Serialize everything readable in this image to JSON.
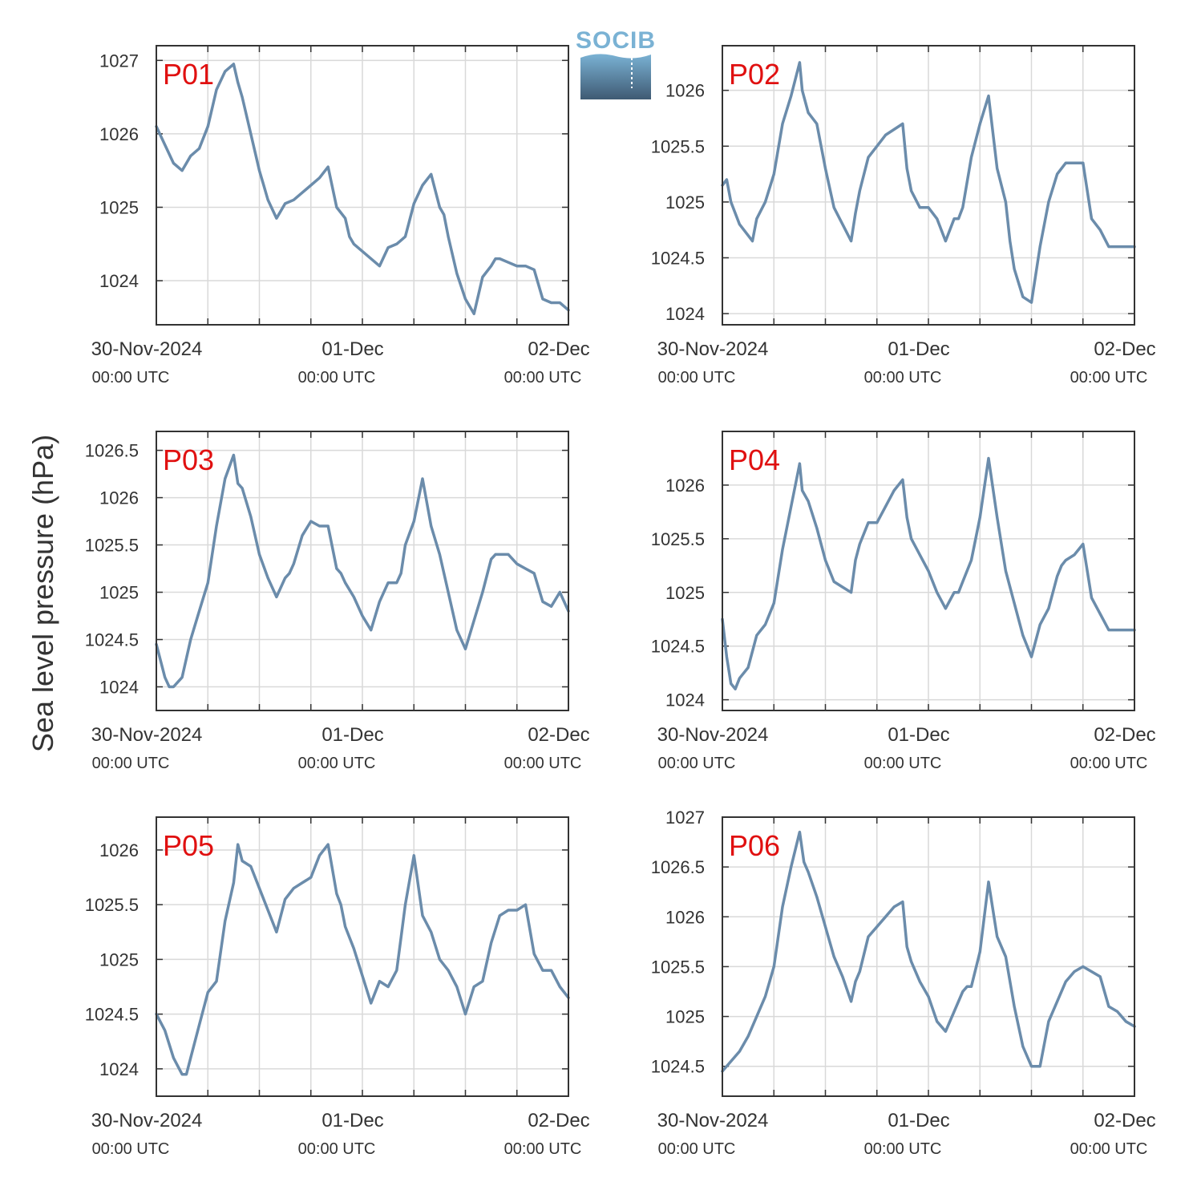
{
  "figure": {
    "ylabel": "Sea level pressure (hPa)",
    "logo_text": "SOCIB",
    "colors": {
      "line": "#6b8cab",
      "label": "#e01010",
      "grid": "#d9d9d9",
      "axis": "#333333",
      "logo_top": "#7ab2d4",
      "logo_bottom": "#3f5a73"
    }
  },
  "chart_data": [
    {
      "type": "line",
      "label": "P01",
      "ylim": [
        1023.4,
        1027.2
      ],
      "yticks": [
        1024,
        1025,
        1026,
        1027
      ],
      "xlim": [
        0,
        48
      ],
      "xticks": [
        {
          "x": 0,
          "label": "30-Nov-2024",
          "sub": "00:00 UTC"
        },
        {
          "x": 24,
          "label": "01-Dec",
          "sub": "00:00 UTC"
        },
        {
          "x": 48,
          "label": "02-Dec",
          "sub": "00:00 UTC"
        }
      ],
      "series": [
        {
          "x": [
            0,
            1,
            2,
            3,
            3.5,
            4,
            5,
            6,
            7,
            8,
            9,
            9.5,
            10,
            11,
            12,
            12.5,
            13,
            14,
            15,
            16,
            17,
            18,
            18.5,
            19,
            20,
            21,
            22,
            22.5,
            23,
            24,
            25,
            26,
            27,
            28,
            28.5,
            29,
            30,
            31,
            32,
            33,
            33.5,
            34,
            35,
            36,
            37,
            38,
            39,
            39.5,
            40,
            41,
            42,
            43,
            44,
            45,
            46,
            47,
            48
          ],
          "y": [
            1026.1,
            1025.85,
            1025.6,
            1025.5,
            1025.6,
            1025.7,
            1025.8,
            1026.1,
            1026.6,
            1026.85,
            1026.95,
            1026.7,
            1026.5,
            1026.0,
            1025.5,
            1025.3,
            1025.1,
            1024.85,
            1025.05,
            1025.1,
            1025.2,
            1025.3,
            1025.35,
            1025.4,
            1025.55,
            1025.0,
            1024.85,
            1024.6,
            1024.5,
            1024.4,
            1024.3,
            1024.2,
            1024.45,
            1024.5,
            1024.55,
            1024.6,
            1025.05,
            1025.3,
            1025.45,
            1025.0,
            1024.9,
            1024.6,
            1024.1,
            1023.75,
            1023.55,
            1024.05,
            1024.2,
            1024.3,
            1024.3,
            1024.25,
            1024.2,
            1024.2,
            1024.15,
            1023.75,
            1023.7,
            1023.7,
            1023.6
          ]
        }
      ]
    },
    {
      "type": "line",
      "label": "P02",
      "ylim": [
        1023.9,
        1026.4
      ],
      "yticks": [
        1024,
        1024.5,
        1025,
        1025.5,
        1026
      ],
      "xlim": [
        0,
        48
      ],
      "xticks": [
        {
          "x": 0,
          "label": "30-Nov-2024",
          "sub": "00:00 UTC"
        },
        {
          "x": 24,
          "label": "01-Dec",
          "sub": "00:00 UTC"
        },
        {
          "x": 48,
          "label": "02-Dec",
          "sub": "00:00 UTC"
        }
      ],
      "series": [
        {
          "x": [
            0,
            0.5,
            1,
            2,
            3,
            3.5,
            4,
            5,
            6,
            7,
            8,
            9,
            9.3,
            10,
            11,
            12,
            13,
            14,
            15,
            15.5,
            16,
            17,
            18,
            19,
            20,
            21,
            21.5,
            22,
            23,
            24,
            25,
            26,
            27,
            27.5,
            28,
            29,
            30,
            31,
            32,
            33,
            33.5,
            34,
            35,
            36,
            37,
            38,
            39,
            39.5,
            40,
            41,
            42,
            43,
            44,
            45,
            45.5,
            46,
            47,
            48
          ],
          "y": [
            1025.15,
            1025.2,
            1025.0,
            1024.8,
            1024.7,
            1024.65,
            1024.85,
            1025.0,
            1025.25,
            1025.7,
            1025.95,
            1026.25,
            1026.0,
            1025.8,
            1025.7,
            1025.3,
            1024.95,
            1024.8,
            1024.65,
            1024.9,
            1025.1,
            1025.4,
            1025.5,
            1025.6,
            1025.65,
            1025.7,
            1025.3,
            1025.1,
            1024.95,
            1024.95,
            1024.85,
            1024.65,
            1024.85,
            1024.85,
            1024.95,
            1025.4,
            1025.7,
            1025.95,
            1025.3,
            1025.0,
            1024.65,
            1024.4,
            1024.15,
            1024.1,
            1024.6,
            1025.0,
            1025.25,
            1025.3,
            1025.35,
            1025.35,
            1025.35,
            1024.85,
            1024.75,
            1024.6,
            1024.6,
            1024.6,
            1024.6,
            1024.6
          ]
        }
      ]
    },
    {
      "type": "line",
      "label": "P03",
      "ylim": [
        1023.75,
        1026.7
      ],
      "yticks": [
        1024,
        1024.5,
        1025,
        1025.5,
        1026,
        1026.5
      ],
      "xlim": [
        0,
        48
      ],
      "xticks": [
        {
          "x": 0,
          "label": "30-Nov-2024",
          "sub": "00:00 UTC"
        },
        {
          "x": 24,
          "label": "01-Dec",
          "sub": "00:00 UTC"
        },
        {
          "x": 48,
          "label": "02-Dec",
          "sub": "00:00 UTC"
        }
      ],
      "series": [
        {
          "x": [
            0,
            1,
            1.5,
            2,
            3,
            4,
            5,
            6,
            7,
            8,
            9,
            9.5,
            10,
            11,
            12,
            13,
            14,
            15,
            15.5,
            16,
            17,
            18,
            19,
            20,
            21,
            21.5,
            22,
            23,
            24,
            25,
            26,
            27,
            28,
            28.5,
            29,
            30,
            31,
            32,
            33,
            34,
            35,
            36,
            37,
            38,
            39,
            39.5,
            40,
            41,
            42,
            43,
            44,
            45,
            46,
            47,
            48
          ],
          "y": [
            1024.45,
            1024.1,
            1024.0,
            1024.0,
            1024.1,
            1024.5,
            1024.8,
            1025.1,
            1025.7,
            1026.2,
            1026.45,
            1026.15,
            1026.1,
            1025.8,
            1025.4,
            1025.15,
            1024.95,
            1025.15,
            1025.2,
            1025.3,
            1025.6,
            1025.75,
            1025.7,
            1025.7,
            1025.25,
            1025.2,
            1025.1,
            1024.95,
            1024.75,
            1024.6,
            1024.9,
            1025.1,
            1025.1,
            1025.2,
            1025.5,
            1025.75,
            1026.2,
            1025.7,
            1025.4,
            1025.0,
            1024.6,
            1024.4,
            1024.7,
            1025.0,
            1025.35,
            1025.4,
            1025.4,
            1025.4,
            1025.3,
            1025.25,
            1025.2,
            1024.9,
            1024.85,
            1025.0,
            1024.8
          ]
        }
      ]
    },
    {
      "type": "line",
      "label": "P04",
      "ylim": [
        1023.9,
        1026.5
      ],
      "yticks": [
        1024,
        1024.5,
        1025,
        1025.5,
        1026
      ],
      "xlim": [
        0,
        48
      ],
      "xticks": [
        {
          "x": 0,
          "label": "30-Nov-2024",
          "sub": "00:00 UTC"
        },
        {
          "x": 24,
          "label": "01-Dec",
          "sub": "00:00 UTC"
        },
        {
          "x": 48,
          "label": "02-Dec",
          "sub": "00:00 UTC"
        }
      ],
      "series": [
        {
          "x": [
            0,
            0.5,
            1,
            1.5,
            2,
            3,
            4,
            5,
            6,
            7,
            8,
            9,
            9.3,
            10,
            11,
            12,
            13,
            14,
            15,
            15.5,
            16,
            17,
            18,
            19,
            20,
            21,
            21.5,
            22,
            23,
            24,
            25,
            26,
            27,
            27.5,
            28,
            29,
            30,
            31,
            32,
            33,
            34,
            35,
            36,
            37,
            38,
            39,
            39.5,
            40,
            41,
            42,
            43,
            44,
            45,
            46,
            47,
            48
          ],
          "y": [
            1024.75,
            1024.4,
            1024.15,
            1024.1,
            1024.2,
            1024.3,
            1024.6,
            1024.7,
            1024.9,
            1025.4,
            1025.8,
            1026.2,
            1025.95,
            1025.85,
            1025.6,
            1025.3,
            1025.1,
            1025.05,
            1025.0,
            1025.3,
            1025.45,
            1025.65,
            1025.65,
            1025.8,
            1025.95,
            1026.05,
            1025.7,
            1025.5,
            1025.35,
            1025.2,
            1025.0,
            1024.85,
            1025.0,
            1025.0,
            1025.1,
            1025.3,
            1025.7,
            1026.25,
            1025.7,
            1025.2,
            1024.9,
            1024.6,
            1024.4,
            1024.7,
            1024.85,
            1025.15,
            1025.25,
            1025.3,
            1025.35,
            1025.45,
            1024.95,
            1024.8,
            1024.65,
            1024.65,
            1024.65,
            1024.65
          ]
        }
      ]
    },
    {
      "type": "line",
      "label": "P05",
      "ylim": [
        1023.75,
        1026.3
      ],
      "yticks": [
        1024,
        1024.5,
        1025,
        1025.5,
        1026
      ],
      "xlim": [
        0,
        48
      ],
      "xticks": [
        {
          "x": 0,
          "label": "30-Nov-2024",
          "sub": "00:00 UTC"
        },
        {
          "x": 24,
          "label": "01-Dec",
          "sub": "00:00 UTC"
        },
        {
          "x": 48,
          "label": "02-Dec",
          "sub": "00:00 UTC"
        }
      ],
      "series": [
        {
          "x": [
            0,
            1,
            2,
            3,
            3.5,
            4,
            5,
            6,
            7,
            8,
            9,
            9.5,
            10,
            11,
            12,
            13,
            14,
            15,
            15.5,
            16,
            17,
            18,
            19,
            20,
            21,
            21.5,
            22,
            23,
            24,
            25,
            26,
            27,
            28,
            28.5,
            29,
            30,
            31,
            32,
            33,
            34,
            35,
            36,
            37,
            38,
            39,
            40,
            41,
            42,
            43,
            44,
            45,
            46,
            47,
            48
          ],
          "y": [
            1024.5,
            1024.35,
            1024.1,
            1023.95,
            1023.95,
            1024.1,
            1024.4,
            1024.7,
            1024.8,
            1025.35,
            1025.7,
            1026.05,
            1025.9,
            1025.85,
            1025.65,
            1025.45,
            1025.25,
            1025.55,
            1025.6,
            1025.65,
            1025.7,
            1025.75,
            1025.95,
            1026.05,
            1025.6,
            1025.5,
            1025.3,
            1025.1,
            1024.85,
            1024.6,
            1024.8,
            1024.75,
            1024.9,
            1025.2,
            1025.5,
            1025.95,
            1025.4,
            1025.25,
            1025.0,
            1024.9,
            1024.75,
            1024.5,
            1024.75,
            1024.8,
            1025.15,
            1025.4,
            1025.45,
            1025.45,
            1025.5,
            1025.05,
            1024.9,
            1024.9,
            1024.75,
            1024.65
          ]
        }
      ]
    },
    {
      "type": "line",
      "label": "P06",
      "ylim": [
        1024.2,
        1027.0
      ],
      "yticks": [
        1024.5,
        1025,
        1025.5,
        1026,
        1026.5,
        1027
      ],
      "xlim": [
        0,
        48
      ],
      "xticks": [
        {
          "x": 0,
          "label": "30-Nov-2024",
          "sub": "00:00 UTC"
        },
        {
          "x": 24,
          "label": "01-Dec",
          "sub": "00:00 UTC"
        },
        {
          "x": 48,
          "label": "02-Dec",
          "sub": "00:00 UTC"
        }
      ],
      "series": [
        {
          "x": [
            0,
            1,
            2,
            3,
            4,
            5,
            6,
            7,
            8,
            9,
            9.5,
            10,
            11,
            12,
            13,
            14,
            15,
            15.5,
            16,
            17,
            18,
            19,
            20,
            21,
            21.5,
            22,
            23,
            24,
            25,
            26,
            27,
            28,
            28.5,
            29,
            30,
            31,
            32,
            33,
            34,
            35,
            36,
            37,
            38,
            39,
            40,
            41,
            42,
            43,
            44,
            45,
            46,
            47,
            48
          ],
          "y": [
            1024.45,
            1024.55,
            1024.65,
            1024.8,
            1025.0,
            1025.2,
            1025.5,
            1026.1,
            1026.5,
            1026.85,
            1026.55,
            1026.45,
            1026.2,
            1025.9,
            1025.6,
            1025.4,
            1025.15,
            1025.35,
            1025.45,
            1025.8,
            1025.9,
            1026.0,
            1026.1,
            1026.15,
            1025.7,
            1025.55,
            1025.35,
            1025.2,
            1024.95,
            1024.85,
            1025.05,
            1025.25,
            1025.3,
            1025.3,
            1025.65,
            1026.35,
            1025.8,
            1025.6,
            1025.1,
            1024.7,
            1024.5,
            1024.5,
            1024.95,
            1025.15,
            1025.35,
            1025.45,
            1025.5,
            1025.45,
            1025.4,
            1025.1,
            1025.05,
            1024.95,
            1024.9
          ]
        }
      ]
    }
  ]
}
